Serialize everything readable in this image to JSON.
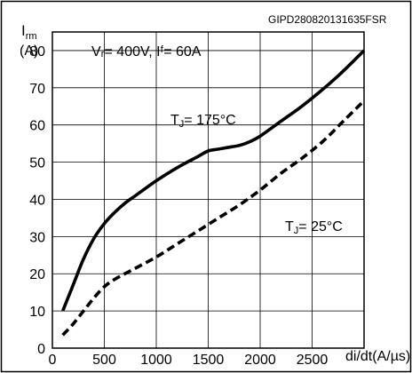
{
  "chart_data": {
    "type": "line",
    "figure_id": "GIPD280820131635FSR",
    "conditions": "Vᵣ= 400V, Iᶠ= 60A",
    "ylabel_main": "I",
    "ylabel_sub": "rm",
    "ylabel_unit": "(A)",
    "xlabel": "di/dt(A/µs)",
    "xlim": [
      0,
      3000
    ],
    "ylim": [
      0,
      85
    ],
    "x_ticks": [
      0,
      500,
      1000,
      1500,
      2000,
      2500
    ],
    "y_ticks": [
      0,
      10,
      20,
      30,
      40,
      50,
      60,
      70,
      80
    ],
    "grid": true,
    "series": [
      {
        "name": "TJ= 175°C",
        "label_main": "T",
        "label_sub": "J",
        "label_rest": "= 175°C",
        "style": "solid",
        "x": [
          100,
          200,
          300,
          400,
          500,
          600,
          700,
          800,
          1000,
          1200,
          1400,
          1500,
          1600,
          1700,
          1800,
          1900,
          2000,
          2200,
          2400,
          2600,
          2800,
          3000
        ],
        "y": [
          10,
          17,
          24,
          29.5,
          33.5,
          36.5,
          39,
          41,
          45,
          48.5,
          51.5,
          53,
          53.5,
          54,
          54.5,
          55.5,
          57,
          61,
          65,
          69.5,
          74.5,
          80
        ]
      },
      {
        "name": "TJ= 25°C",
        "label_main": "T",
        "label_sub": "J",
        "label_rest": "= 25°C",
        "style": "dashed",
        "x": [
          100,
          200,
          300,
          400,
          500,
          600,
          800,
          1000,
          1200,
          1400,
          1600,
          1800,
          2000,
          2200,
          2400,
          2600,
          2800,
          3000
        ],
        "y": [
          3.5,
          6.5,
          10,
          13.5,
          16.5,
          18.5,
          21.5,
          24.5,
          28,
          31.5,
          35,
          38.5,
          42.5,
          47,
          51,
          55.5,
          61,
          66.5
        ]
      }
    ]
  }
}
